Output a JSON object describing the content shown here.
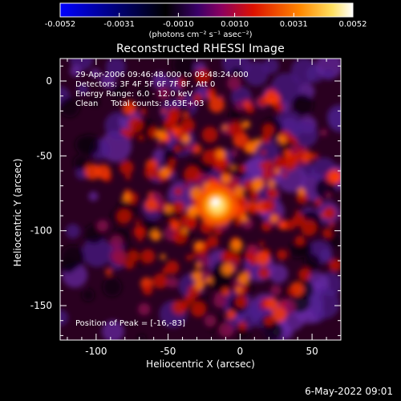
{
  "chart_data": {
    "type": "heatmap",
    "title": "Reconstructed RHESSI Image",
    "xlabel": "Heliocentric X (arcsec)",
    "ylabel": "Heliocentric Y (arcsec)",
    "xlim": [
      -125,
      70
    ],
    "ylim": [
      -173,
      15
    ],
    "x_ticks": [
      -100,
      -50,
      0,
      50
    ],
    "y_ticks": [
      0,
      -50,
      -100,
      -150
    ],
    "colorbar": {
      "min": -0.0052,
      "max": 0.0052,
      "tick_labels": [
        "-0.0052",
        "-0.0031",
        "-0.0010",
        "0.0010",
        "0.0031",
        "0.0052"
      ],
      "unit_label": "(photons cm⁻² s⁻¹ asec⁻²)",
      "colors": [
        "#0000ff",
        "#000000",
        "#5a0aa0",
        "#dd1100",
        "#ff7700",
        "#ffffff"
      ]
    },
    "annotations": {
      "time": "29-Apr-2006 09:46:48.000 to 09:48:24.000",
      "detectors": "Detectors: 3F 4F 5F 6F 7F 8F, Att 0",
      "energy": "Energy Range: 6.0 - 12.0 keV",
      "clean": "Clean     Total counts: 8.63E+03",
      "peak": "Position of Peak = [-16,-83]"
    },
    "peak": [
      -16,
      -83
    ]
  },
  "footer": {
    "date": "6-May-2022 09:01"
  },
  "colors": {
    "background": "#000000",
    "text": "#ffffff"
  }
}
